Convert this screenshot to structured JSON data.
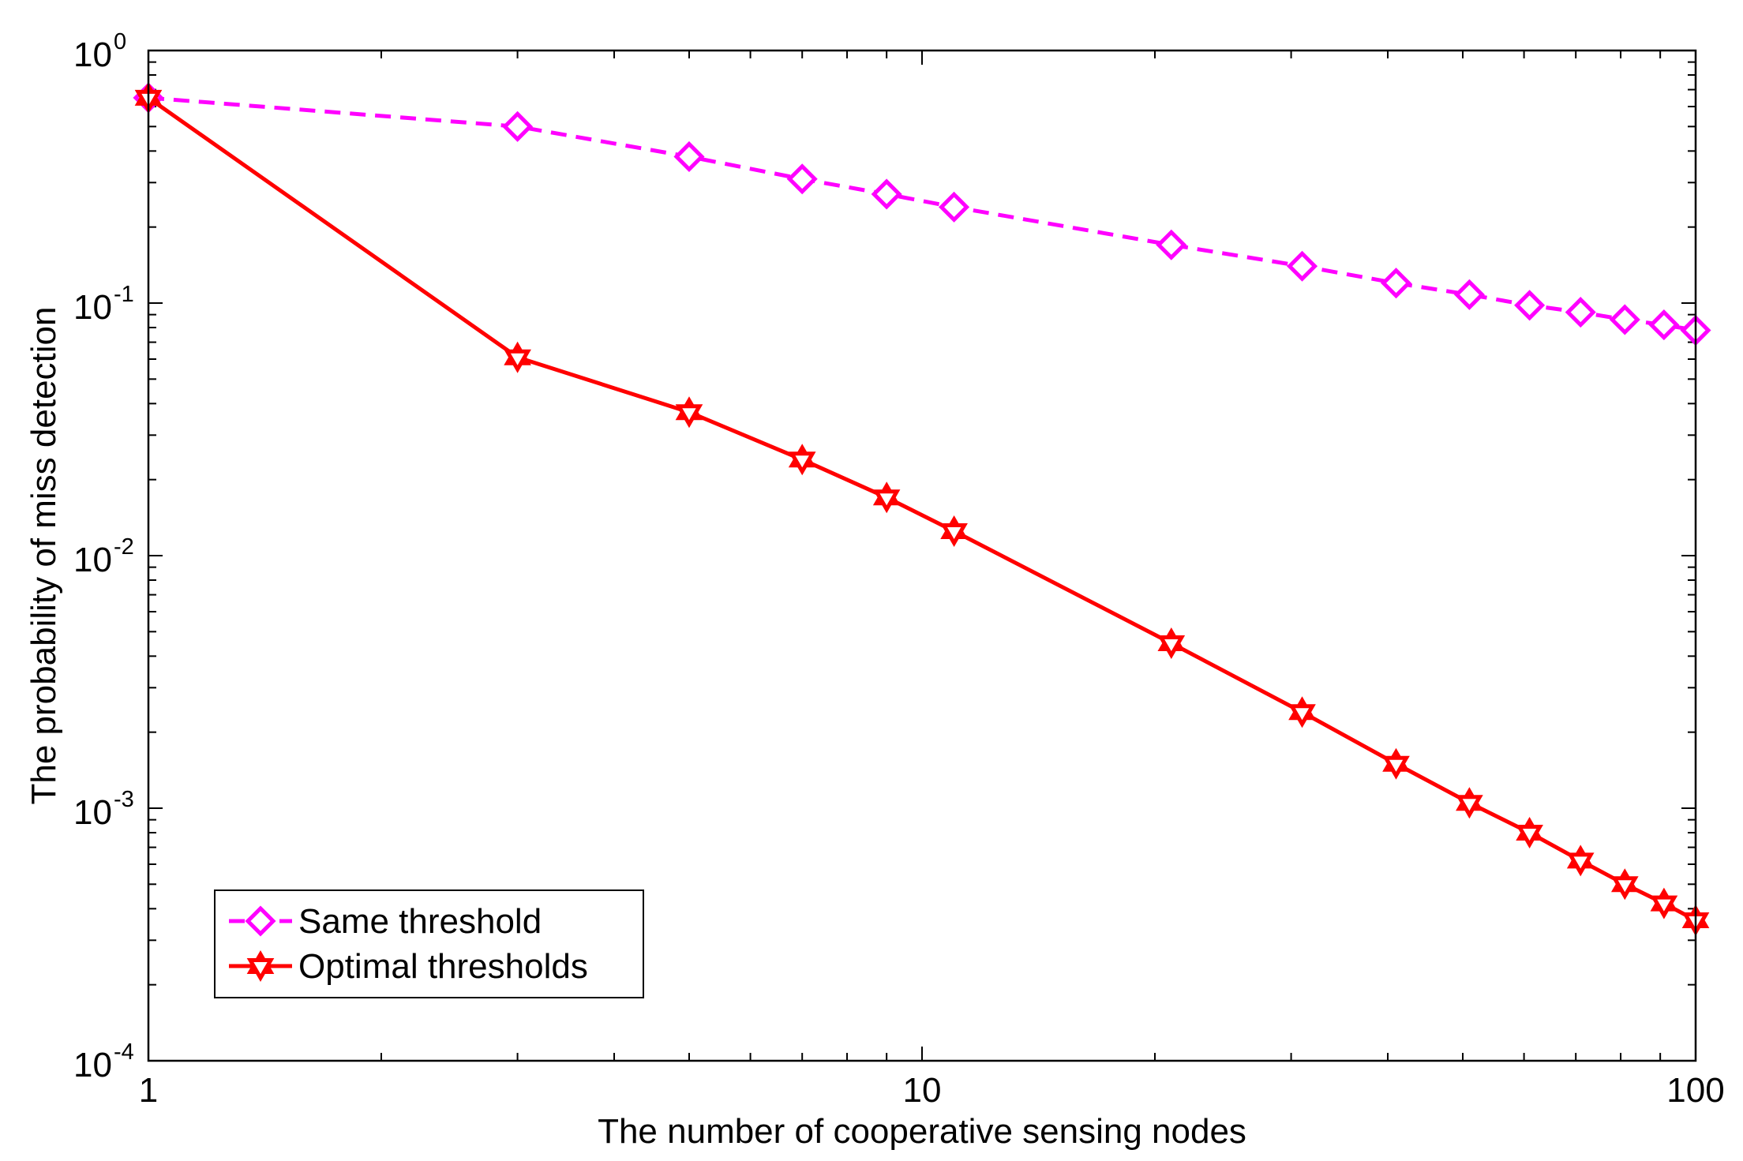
{
  "chart_data": {
    "type": "line",
    "xscale": "log",
    "yscale": "log",
    "xlabel": "The number of cooperative sensing nodes",
    "ylabel": "The probability of miss detection",
    "xlim": [
      1,
      100
    ],
    "ylim": [
      0.0001,
      1
    ],
    "x_ticks": [
      {
        "value": 1,
        "label": "1"
      },
      {
        "value": 10,
        "label": "10"
      },
      {
        "value": 100,
        "label": "100"
      }
    ],
    "y_ticks": [
      {
        "value": 1,
        "base": "10",
        "exp": "0"
      },
      {
        "value": 0.1,
        "base": "10",
        "exp": "-1"
      },
      {
        "value": 0.01,
        "base": "10",
        "exp": "-2"
      },
      {
        "value": 0.001,
        "base": "10",
        "exp": "-3"
      },
      {
        "value": 0.0001,
        "base": "10",
        "exp": "-4"
      }
    ],
    "legend_position": "bottom-left",
    "series": [
      {
        "name": "Same threshold",
        "color": "#ff00ff",
        "line_style": "dashed",
        "marker": "diamond",
        "x": [
          1,
          3,
          5,
          7,
          9,
          11,
          21,
          31,
          41,
          51,
          61,
          71,
          81,
          91,
          100
        ],
        "y": [
          0.65,
          0.5,
          0.38,
          0.31,
          0.27,
          0.24,
          0.17,
          0.14,
          0.12,
          0.108,
          0.098,
          0.092,
          0.086,
          0.082,
          0.078
        ]
      },
      {
        "name": "Optimal thresholds",
        "color": "#ff0000",
        "line_style": "solid",
        "marker": "hexagram",
        "x": [
          1,
          3,
          5,
          7,
          9,
          11,
          21,
          31,
          41,
          51,
          61,
          71,
          81,
          91,
          100
        ],
        "y": [
          0.65,
          0.061,
          0.037,
          0.024,
          0.017,
          0.0125,
          0.0045,
          0.0024,
          0.0015,
          0.00105,
          0.0008,
          0.00062,
          0.0005,
          0.00042,
          0.00036
        ]
      }
    ]
  }
}
